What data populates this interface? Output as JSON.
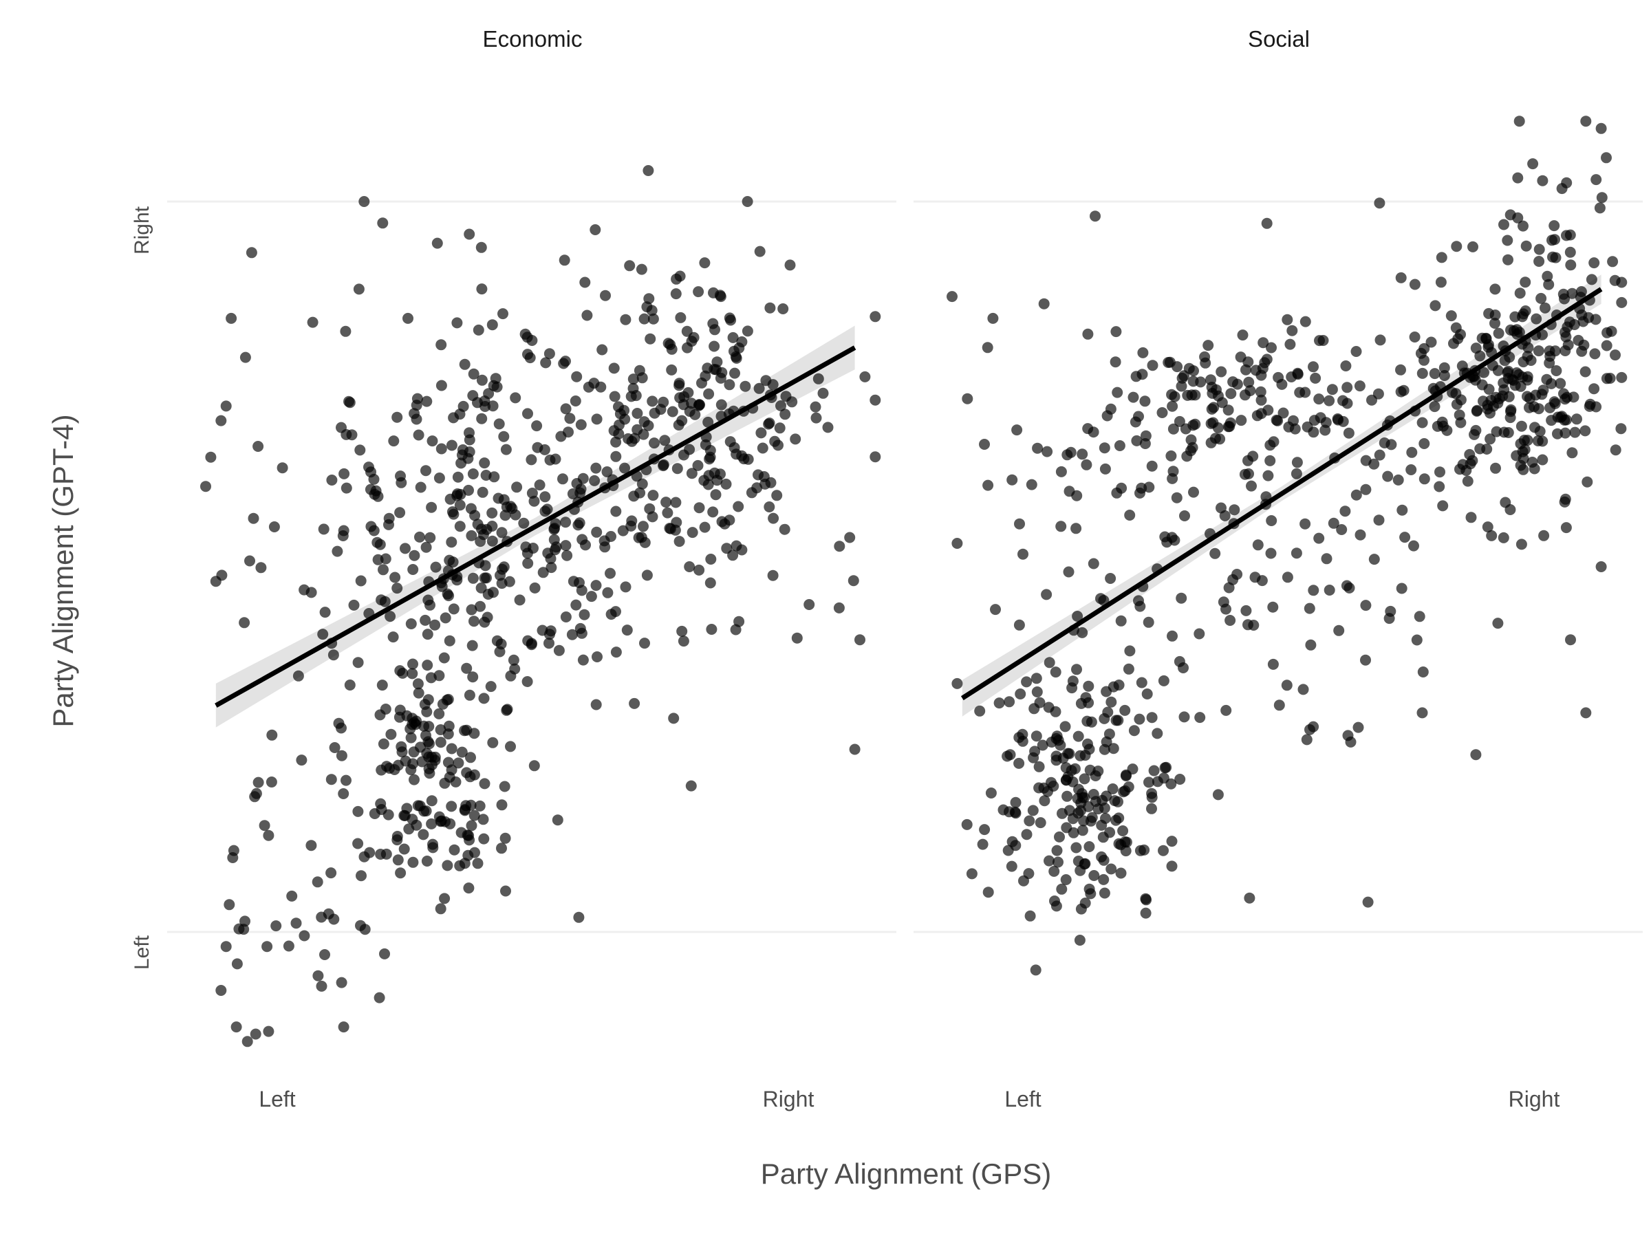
{
  "chart_data": {
    "type": "scatter",
    "xlabel": "Party Alignment (GPS)",
    "ylabel": "Party Alignment (GPT-4)",
    "x_ticks": [
      {
        "label": "Left",
        "value": 0
      },
      {
        "label": "Right",
        "value": 1
      }
    ],
    "y_ticks": [
      {
        "label": "Left",
        "value": 0
      },
      {
        "label": "Right",
        "value": 1
      }
    ],
    "xlim": [
      -0.14,
      1.2
    ],
    "ylim": [
      -0.19,
      1.12
    ],
    "grid": true,
    "point_color": "#000000",
    "point_opacity": 0.65,
    "trend_color": "#000000",
    "ci_color": "#d9d9d9",
    "facets": [
      {
        "title": "Economic",
        "trend": {
          "x": [
            -0.12,
            1.13
          ],
          "y": [
            0.31,
            0.8
          ]
        },
        "ci_halfwidth": {
          "start": 0.03,
          "middle": 0.012,
          "end": 0.03
        },
        "clusters": [
          {
            "cx": 0.3,
            "cy": 0.22,
            "sx": 0.08,
            "sy": 0.09,
            "n": 140
          },
          {
            "cx": 0.4,
            "cy": 0.55,
            "sx": 0.18,
            "sy": 0.15,
            "n": 310
          },
          {
            "cx": 0.82,
            "cy": 0.74,
            "sx": 0.14,
            "sy": 0.1,
            "n": 160
          },
          {
            "cx": 0.78,
            "cy": 0.6,
            "sx": 0.15,
            "sy": 0.1,
            "n": 90
          },
          {
            "cx": 0.05,
            "cy": 0.08,
            "sx": 0.07,
            "sy": 0.12,
            "n": 40
          }
        ],
        "points": [
          [
            -0.14,
            0.61
          ],
          [
            -0.13,
            0.65
          ],
          [
            -0.12,
            0.48
          ],
          [
            -0.11,
            0.7
          ],
          [
            -0.1,
            0.72
          ],
          [
            -0.1,
            -0.02
          ],
          [
            -0.11,
            -0.08
          ],
          [
            -0.08,
            -0.13
          ],
          [
            -0.02,
            -0.02
          ],
          [
            -0.09,
            0.84
          ],
          [
            -0.05,
            0.93
          ],
          [
            0.08,
            -0.06
          ],
          [
            0.13,
            -0.13
          ],
          [
            0.2,
            -0.09
          ],
          [
            0.21,
            -0.03
          ],
          [
            0.17,
            1.0
          ],
          [
            0.16,
            0.88
          ],
          [
            0.59,
            0.02
          ],
          [
            0.92,
            1.0
          ],
          [
            0.81,
            0.2
          ],
          [
            1.13,
            0.25
          ],
          [
            1.14,
            0.4
          ],
          [
            1.12,
            0.54
          ],
          [
            1.15,
            0.76
          ],
          [
            0.58,
            0.48
          ]
        ]
      },
      {
        "title": "Social",
        "trend": {
          "x": [
            -0.12,
            1.13
          ],
          "y": [
            0.32,
            0.88
          ]
        },
        "ci_halfwidth": {
          "start": 0.025,
          "middle": 0.01,
          "end": 0.02
        },
        "clusters": [
          {
            "cx": 0.12,
            "cy": 0.2,
            "sx": 0.1,
            "sy": 0.09,
            "n": 200
          },
          {
            "cx": 0.42,
            "cy": 0.72,
            "sx": 0.14,
            "sy": 0.05,
            "n": 120
          },
          {
            "cx": 0.96,
            "cy": 0.76,
            "sx": 0.1,
            "sy": 0.08,
            "n": 230
          },
          {
            "cx": 0.55,
            "cy": 0.5,
            "sx": 0.22,
            "sy": 0.15,
            "n": 120
          },
          {
            "cx": 1.05,
            "cy": 0.92,
            "sx": 0.08,
            "sy": 0.08,
            "n": 40
          },
          {
            "cx": 0.2,
            "cy": 0.62,
            "sx": 0.14,
            "sy": 0.1,
            "n": 60
          }
        ],
        "points": [
          [
            -0.14,
            0.87
          ],
          [
            -0.11,
            0.73
          ],
          [
            -0.06,
            0.84
          ],
          [
            0.14,
            0.98
          ],
          [
            0.04,
            0.86
          ],
          [
            1.1,
            1.11
          ],
          [
            1.13,
            1.1
          ],
          [
            0.97,
            1.11
          ],
          [
            1.14,
            1.06
          ],
          [
            1.12,
            1.03
          ],
          [
            0.29,
            0.09
          ],
          [
            0.64,
            0.26
          ],
          [
            1.1,
            0.3
          ],
          [
            1.13,
            0.5
          ],
          [
            1.07,
            0.4
          ],
          [
            0.07,
            0.13
          ],
          [
            0.0,
            0.07
          ],
          [
            -0.08,
            0.12
          ],
          [
            0.45,
            0.42
          ],
          [
            0.78,
            0.3
          ]
        ]
      }
    ]
  }
}
